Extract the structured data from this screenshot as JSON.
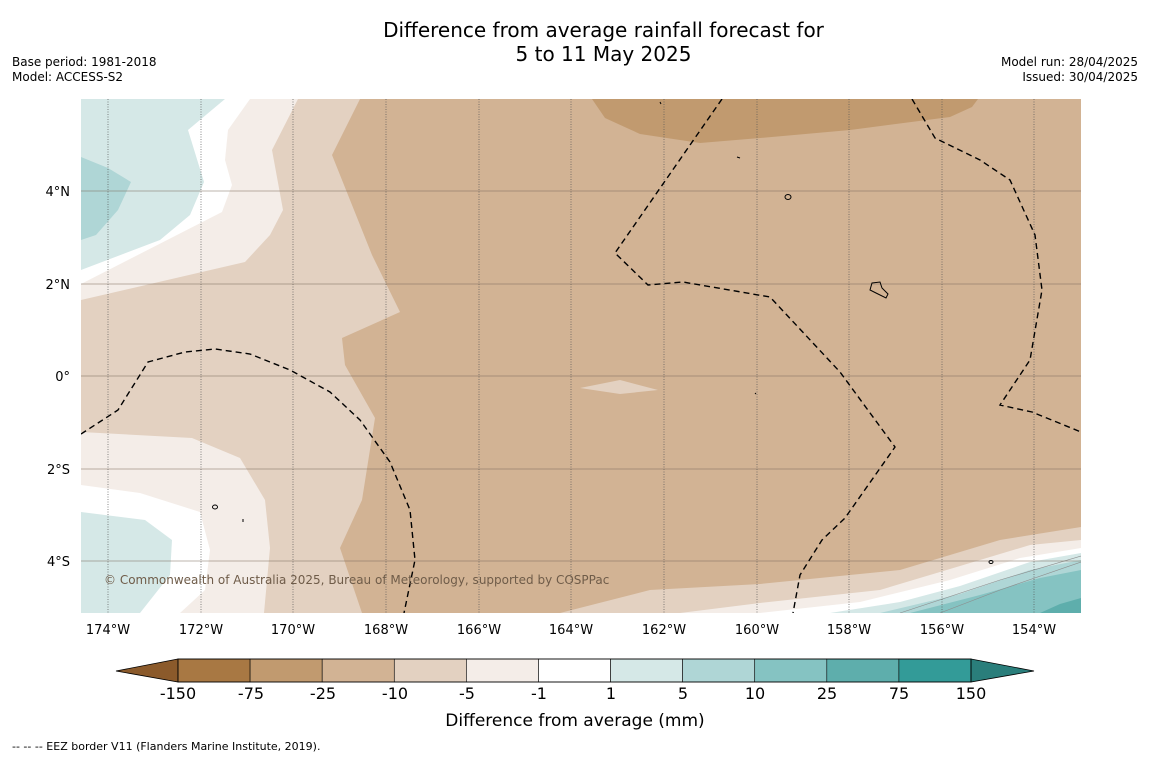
{
  "title": {
    "line1": "Difference from average rainfall forecast for",
    "line2": "5 to 11 May 2025"
  },
  "meta_left": {
    "base_period": "Base period: 1981-2018",
    "model": "Model: ACCESS-S2"
  },
  "meta_right": {
    "model_run": "Model run: 28/04/2025",
    "issued": "Issued: 30/04/2025"
  },
  "map": {
    "lat_labels": [
      "4°N",
      "2°N",
      "0°",
      "2°S",
      "4°S"
    ],
    "lon_labels": [
      "174°W",
      "172°W",
      "170°W",
      "168°W",
      "166°W",
      "164°W",
      "162°W",
      "160°W",
      "158°W",
      "156°W",
      "154°W"
    ],
    "copyright": "© Commonwealth of Australia 2025, Bureau of Meteorology, supported by COSPPac",
    "layer_colors": {
      "minus_75_to_minus_25": "#c19a6f",
      "minus_25_to_minus_10": "#d2b394",
      "minus_10_to_minus_5": "#e3d1c1",
      "minus_5_to_minus_1": "#f4ede8",
      "minus_1_to_1": "#ffffff",
      "one_to_5": "#d5e8e7",
      "five_to_10": "#afd6d6",
      "ten_to_25": "#85c3c2",
      "twentyfive_to_75": "#5eaeac"
    }
  },
  "colorbar": {
    "tick_labels": [
      "-150",
      "-75",
      "-25",
      "-10",
      "-5",
      "-1",
      "1",
      "5",
      "10",
      "25",
      "75",
      "150"
    ],
    "segment_colors": [
      "#a87843",
      "#c19a6f",
      "#d2b394",
      "#e3d1c1",
      "#f4ede8",
      "#ffffff",
      "#d5e8e7",
      "#afd6d6",
      "#85c3c2",
      "#5eaeac",
      "#339b98"
    ],
    "low_extend_color": "#8b5a2b",
    "high_extend_color": "#2a7e7b",
    "title": "Difference from average (mm)"
  },
  "footnote": "--  --  -- EEZ border V11 (Flanders Marine Institute, 2019)."
}
